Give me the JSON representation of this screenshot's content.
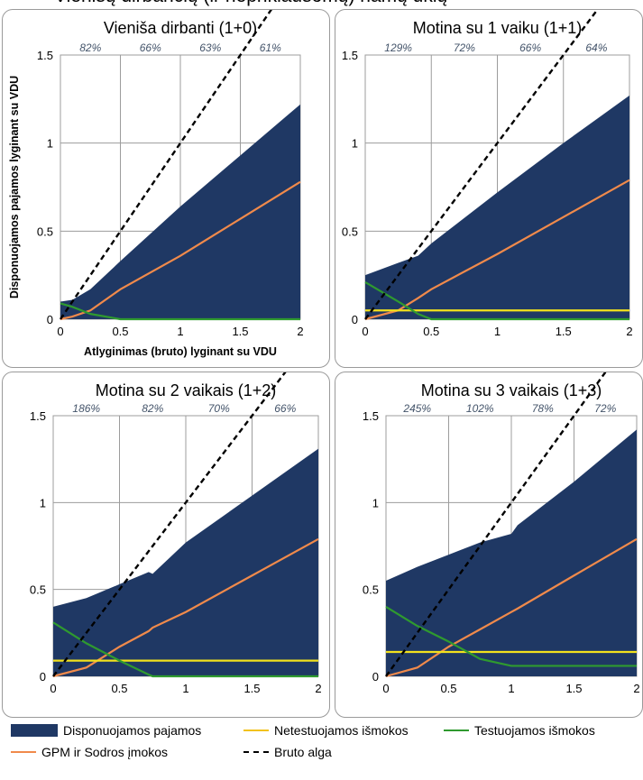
{
  "header_fragment": "Vienišų dirbančių (ir nepriklausomų) namų ūkių",
  "colors": {
    "disposable": "#1f3864",
    "non_means_tested": "#f2e11d",
    "means_tested": "#2f9a2f",
    "tax": "#f08a4b",
    "gross": "#000000"
  },
  "legend": {
    "disposable": "Disponuojamos pajamos",
    "non_means_tested": "Netestuojamos išmokos",
    "means_tested": "Testuojamos išmokos",
    "tax": "GPM ir Sodros įmokos",
    "gross": "Bruto alga"
  },
  "chart_data": [
    {
      "type": "area",
      "title": "Vieniša dirbanti (1+0)",
      "xlabel": "Atlyginimas (bruto) lyginant su VDU",
      "ylabel": "Disponuojamos pajamos lyginant su VDU",
      "xlim": [
        0,
        2
      ],
      "ylim": [
        0,
        1.5
      ],
      "xticks": [
        "0",
        "0.5",
        "1",
        "1.5",
        "2"
      ],
      "yticks": [
        "0",
        "0.5",
        "1",
        "1.5"
      ],
      "top_labels": [
        "82%",
        "66%",
        "63%",
        "61%"
      ],
      "grid": true,
      "x": [
        0,
        0.1,
        0.25,
        0.5,
        1,
        1.5,
        2
      ],
      "series": [
        {
          "name": "Disponuojamos pajamos",
          "kind": "area",
          "values": [
            0.1,
            0.11,
            0.17,
            0.33,
            0.64,
            0.93,
            1.22
          ]
        },
        {
          "name": "GPM ir Sodros įmokos",
          "kind": "line",
          "values": [
            0,
            0.015,
            0.05,
            0.17,
            0.36,
            0.57,
            0.78
          ]
        },
        {
          "name": "Testuojamos išmokos",
          "kind": "line",
          "values": [
            0.09,
            0.07,
            0.03,
            0,
            0,
            0,
            0
          ]
        },
        {
          "name": "Bruto alga",
          "kind": "dash",
          "values": [
            0,
            0.1,
            0.25,
            0.5,
            1,
            1.5,
            2
          ]
        }
      ]
    },
    {
      "type": "area",
      "title": "Motina su 1 vaiku (1+1)",
      "xlim": [
        0,
        2
      ],
      "ylim": [
        0,
        1.5
      ],
      "xticks": [
        "0",
        "0.5",
        "1",
        "1.5",
        "2"
      ],
      "yticks": [
        "0",
        "0.5",
        "1",
        "1.5"
      ],
      "top_labels": [
        "129%",
        "72%",
        "66%",
        "64%"
      ],
      "grid": true,
      "x": [
        0,
        0.25,
        0.4,
        0.5,
        1,
        1.5,
        2
      ],
      "series": [
        {
          "name": "Disponuojamos pajamos",
          "kind": "area",
          "values": [
            0.25,
            0.32,
            0.36,
            0.43,
            0.72,
            1.0,
            1.27
          ]
        },
        {
          "name": "GPM ir Sodros įmokos",
          "kind": "line",
          "values": [
            0,
            0.05,
            0.12,
            0.17,
            0.37,
            0.58,
            0.79
          ]
        },
        {
          "name": "Netestuojamos išmokos",
          "kind": "line",
          "values": [
            0.05,
            0.05,
            0.05,
            0.05,
            0.05,
            0.05,
            0.05
          ]
        },
        {
          "name": "Testuojamos išmokos",
          "kind": "line",
          "values": [
            0.21,
            0.1,
            0.03,
            0,
            0,
            0,
            0
          ]
        },
        {
          "name": "Bruto alga",
          "kind": "dash",
          "values": [
            0,
            0.25,
            0.4,
            0.5,
            1,
            1.5,
            2
          ]
        }
      ]
    },
    {
      "type": "area",
      "title": "Motina su 2 vaikais (1+2)",
      "xlim": [
        0,
        2
      ],
      "ylim": [
        0,
        1.5
      ],
      "xticks": [
        "0",
        "0.5",
        "1",
        "1.5",
        "2"
      ],
      "yticks": [
        "0",
        "0.5",
        "1",
        "1.5"
      ],
      "top_labels": [
        "186%",
        "82%",
        "70%",
        "66%"
      ],
      "grid": true,
      "x": [
        0,
        0.25,
        0.5,
        0.72,
        0.75,
        1,
        1.5,
        2
      ],
      "series": [
        {
          "name": "Disponuojamos pajamos",
          "kind": "area",
          "values": [
            0.4,
            0.45,
            0.53,
            0.6,
            0.59,
            0.77,
            1.04,
            1.31
          ]
        },
        {
          "name": "GPM ir Sodros įmokos",
          "kind": "line",
          "values": [
            0,
            0.05,
            0.17,
            0.26,
            0.28,
            0.37,
            0.58,
            0.79
          ]
        },
        {
          "name": "Netestuojamos išmokos",
          "kind": "line",
          "values": [
            0.09,
            0.09,
            0.09,
            0.09,
            0.09,
            0.09,
            0.09,
            0.09
          ]
        },
        {
          "name": "Testuojamos išmokos",
          "kind": "line",
          "values": [
            0.31,
            0.19,
            0.09,
            0.01,
            0,
            0,
            0,
            0
          ]
        },
        {
          "name": "Bruto alga",
          "kind": "dash",
          "values": [
            0,
            0.25,
            0.5,
            0.72,
            0.75,
            1,
            1.5,
            2
          ]
        }
      ]
    },
    {
      "type": "area",
      "title": "Motina su 3 vaikais (1+3)",
      "xlim": [
        0,
        2
      ],
      "ylim": [
        0,
        1.5
      ],
      "xticks": [
        "0",
        "0.5",
        "1",
        "1.5",
        "2"
      ],
      "yticks": [
        "0",
        "0.5",
        "1",
        "1.5"
      ],
      "top_labels": [
        "245%",
        "102%",
        "78%",
        "72%"
      ],
      "grid": true,
      "x": [
        0,
        0.25,
        0.5,
        0.75,
        1,
        1.05,
        1.5,
        2
      ],
      "series": [
        {
          "name": "Disponuojamos pajamos",
          "kind": "area",
          "values": [
            0.55,
            0.63,
            0.7,
            0.77,
            0.82,
            0.87,
            1.12,
            1.42
          ]
        },
        {
          "name": "GPM ir Sodros įmokos",
          "kind": "line",
          "values": [
            0,
            0.05,
            0.17,
            0.27,
            0.37,
            0.39,
            0.58,
            0.79
          ]
        },
        {
          "name": "Netestuojamos išmokos",
          "kind": "line",
          "values": [
            0.14,
            0.14,
            0.14,
            0.14,
            0.14,
            0.14,
            0.14,
            0.14
          ]
        },
        {
          "name": "Testuojamos išmokos",
          "kind": "line",
          "values": [
            0.4,
            0.29,
            0.2,
            0.1,
            0.06,
            0.06,
            0.06,
            0.06
          ]
        },
        {
          "name": "Bruto alga",
          "kind": "dash",
          "values": [
            0,
            0.25,
            0.5,
            0.75,
            1,
            1.05,
            1.5,
            2
          ]
        }
      ]
    }
  ]
}
